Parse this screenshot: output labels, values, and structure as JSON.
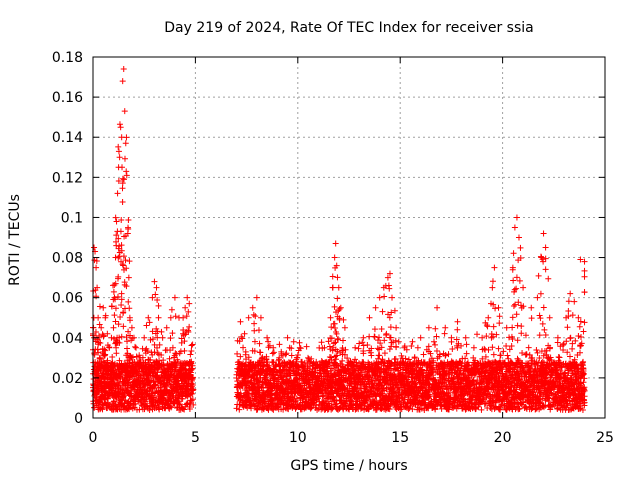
{
  "chart_data": {
    "type": "scatter",
    "title": "Day 219 of 2024, Rate Of TEC Index for receiver ssia",
    "xlabel": "GPS time / hours",
    "ylabel": "ROTI / TECUs",
    "xlim": [
      0,
      25
    ],
    "ylim": [
      0,
      0.18
    ],
    "xticks": [
      0,
      5,
      10,
      15,
      20,
      25
    ],
    "xtick_labels": [
      "0",
      "5",
      "10",
      "15",
      "20",
      "25"
    ],
    "yticks": [
      0,
      0.02,
      0.04,
      0.06,
      0.08,
      0.1,
      0.12,
      0.14,
      0.16,
      0.18
    ],
    "ytick_labels": [
      "0",
      "0.02",
      "0.04",
      "0.06",
      "0.08",
      "0.1",
      "0.12",
      "0.14",
      "0.16",
      "0.18"
    ],
    "grid": true,
    "marker": "plus",
    "color": "#ff0000",
    "data_gap_hours": [
      4.9,
      7.0
    ],
    "series": [
      {
        "points": [
          [
            0.05,
            0.085
          ],
          [
            0.1,
            0.083
          ],
          [
            0.15,
            0.075
          ],
          [
            0.2,
            0.065
          ],
          [
            0.25,
            0.05
          ],
          [
            0.3,
            0.04
          ],
          [
            0.35,
            0.03
          ],
          [
            0.4,
            0.045
          ],
          [
            0.5,
            0.055
          ],
          [
            0.6,
            0.05
          ],
          [
            0.7,
            0.042
          ],
          [
            0.8,
            0.035
          ],
          [
            0.9,
            0.04
          ],
          [
            1.0,
            0.045
          ],
          [
            1.05,
            0.06
          ],
          [
            1.1,
            0.08
          ],
          [
            1.15,
            0.098
          ],
          [
            1.2,
            0.112
          ],
          [
            1.25,
            0.125
          ],
          [
            1.3,
            0.13
          ],
          [
            1.35,
            0.145
          ],
          [
            1.4,
            0.14
          ],
          [
            1.45,
            0.168
          ],
          [
            1.5,
            0.174
          ],
          [
            1.55,
            0.153
          ],
          [
            1.6,
            0.137
          ],
          [
            1.65,
            0.121
          ],
          [
            1.7,
            0.092
          ],
          [
            1.75,
            0.07
          ],
          [
            1.8,
            0.05
          ],
          [
            1.9,
            0.045
          ],
          [
            2.0,
            0.04
          ],
          [
            2.1,
            0.035
          ],
          [
            2.3,
            0.03
          ],
          [
            2.5,
            0.04
          ],
          [
            2.7,
            0.05
          ],
          [
            2.9,
            0.06
          ],
          [
            3.0,
            0.068
          ],
          [
            3.1,
            0.065
          ],
          [
            3.2,
            0.05
          ],
          [
            3.4,
            0.04
          ],
          [
            3.6,
            0.045
          ],
          [
            3.8,
            0.05
          ],
          [
            4.0,
            0.06
          ],
          [
            4.2,
            0.05
          ],
          [
            4.4,
            0.05
          ],
          [
            4.5,
            0.055
          ],
          [
            4.6,
            0.06
          ],
          [
            4.7,
            0.057
          ],
          [
            7.2,
            0.048
          ],
          [
            7.4,
            0.042
          ],
          [
            7.6,
            0.05
          ],
          [
            7.8,
            0.055
          ],
          [
            8.0,
            0.06
          ],
          [
            8.2,
            0.05
          ],
          [
            8.5,
            0.04
          ],
          [
            8.8,
            0.035
          ],
          [
            9.2,
            0.032
          ],
          [
            9.5,
            0.04
          ],
          [
            9.8,
            0.038
          ],
          [
            10.1,
            0.035
          ],
          [
            10.5,
            0.03
          ],
          [
            10.9,
            0.028
          ],
          [
            11.3,
            0.035
          ],
          [
            11.6,
            0.05
          ],
          [
            11.7,
            0.065
          ],
          [
            11.8,
            0.08
          ],
          [
            11.85,
            0.087
          ],
          [
            11.9,
            0.076
          ],
          [
            12.0,
            0.065
          ],
          [
            12.1,
            0.055
          ],
          [
            12.3,
            0.045
          ],
          [
            12.8,
            0.035
          ],
          [
            13.2,
            0.04
          ],
          [
            13.5,
            0.05
          ],
          [
            13.8,
            0.055
          ],
          [
            14.0,
            0.06
          ],
          [
            14.2,
            0.065
          ],
          [
            14.4,
            0.07
          ],
          [
            14.5,
            0.072
          ],
          [
            14.6,
            0.06
          ],
          [
            14.8,
            0.045
          ],
          [
            15.2,
            0.035
          ],
          [
            15.6,
            0.038
          ],
          [
            16.0,
            0.04
          ],
          [
            16.4,
            0.045
          ],
          [
            16.8,
            0.055
          ],
          [
            17.2,
            0.045
          ],
          [
            17.5,
            0.04
          ],
          [
            17.8,
            0.048
          ],
          [
            18.2,
            0.04
          ],
          [
            18.6,
            0.035
          ],
          [
            19.0,
            0.04
          ],
          [
            19.3,
            0.05
          ],
          [
            19.5,
            0.065
          ],
          [
            19.6,
            0.075
          ],
          [
            19.8,
            0.055
          ],
          [
            20.2,
            0.045
          ],
          [
            20.5,
            0.075
          ],
          [
            20.6,
            0.095
          ],
          [
            20.7,
            0.1
          ],
          [
            20.8,
            0.09
          ],
          [
            21.0,
            0.065
          ],
          [
            21.4,
            0.055
          ],
          [
            21.7,
            0.06
          ],
          [
            21.9,
            0.08
          ],
          [
            22.0,
            0.092
          ],
          [
            22.1,
            0.085
          ],
          [
            22.3,
            0.05
          ],
          [
            22.7,
            0.04
          ],
          [
            23.1,
            0.05
          ],
          [
            23.3,
            0.062
          ],
          [
            23.5,
            0.058
          ],
          [
            23.7,
            0.05
          ],
          [
            23.8,
            0.079
          ],
          [
            24.0,
            0.078
          ]
        ]
      }
    ]
  }
}
